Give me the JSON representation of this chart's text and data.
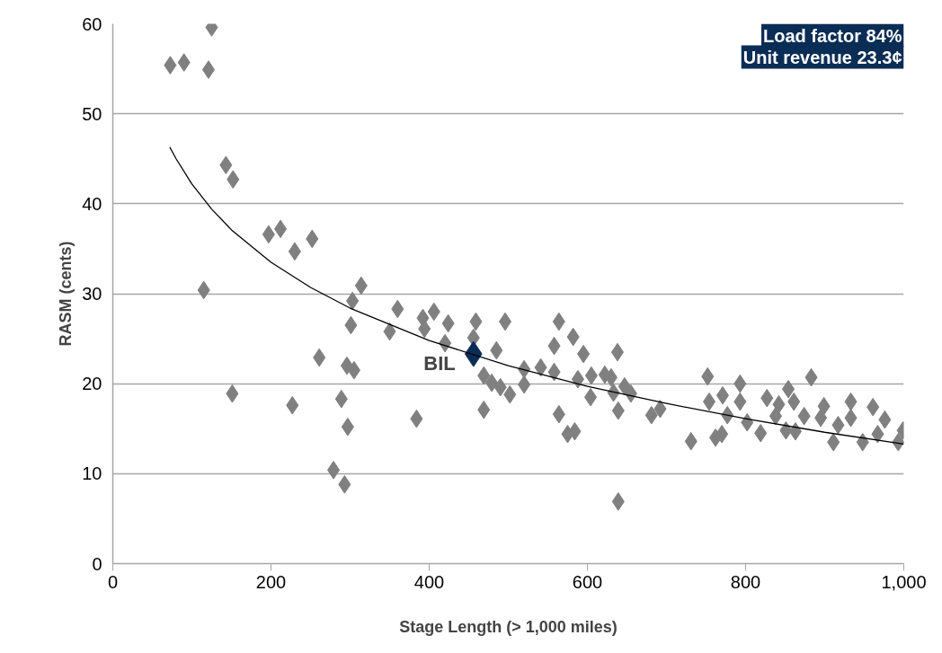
{
  "chart_data": {
    "type": "scatter",
    "xlabel": "Stage Length (> 1,000 miles)",
    "ylabel": "RASM (cents)",
    "xlim": [
      0,
      1000
    ],
    "ylim": [
      0,
      60
    ],
    "xticks": [
      0,
      200,
      400,
      600,
      800,
      {
        "value": 1000,
        "label": "1,000"
      }
    ],
    "yticks": [
      0,
      10,
      20,
      30,
      40,
      50,
      60
    ],
    "grid": "y",
    "marker": "diamond",
    "annotations": [
      "Load factor 84%",
      "Unit revenue 23.3¢"
    ],
    "series": [
      {
        "color": "#808080",
        "x": [
          125,
          72.6,
          90,
          121,
          143,
          152,
          197,
          212,
          230,
          252,
          115,
          314,
          303,
          301,
          261,
          296,
          305,
          151,
          227,
          289,
          297,
          279,
          293,
          360,
          350,
          392,
          406,
          394,
          424,
          420,
          459,
          496,
          456,
          485,
          469,
          479,
          490,
          502,
          469,
          384,
          520,
          520,
          541,
          558,
          564,
          558,
          582,
          595,
          588,
          604,
          605,
          622,
          630,
          638,
          639,
          633,
          647,
          564,
          575,
          584,
          639,
          655,
          681,
          692,
          731,
          752,
          754,
          771,
          777,
          762,
          770,
          793,
          793,
          802,
          819,
          827,
          838,
          842,
          854,
          861,
          851,
          863,
          883,
          874,
          899,
          895,
          911,
          917,
          933,
          933,
          948,
          961,
          967,
          976,
          993,
          999
        ],
        "values": [
          59.6,
          55.4,
          55.7,
          54.9,
          44.3,
          42.7,
          36.6,
          37.2,
          34.7,
          36.1,
          30.4,
          30.9,
          29.2,
          26.5,
          22.9,
          22,
          21.5,
          18.9,
          17.6,
          18.3,
          15.2,
          10.4,
          8.8,
          28.3,
          25.8,
          27.3,
          28,
          26.1,
          26.7,
          24.5,
          26.9,
          26.9,
          25.1,
          23.7,
          20.9,
          20.1,
          19.6,
          18.8,
          17.1,
          16.1,
          21.6,
          19.9,
          21.8,
          21.3,
          26.9,
          24.2,
          25.2,
          23.3,
          20.5,
          18.5,
          20.9,
          21,
          20.7,
          23.5,
          17,
          19,
          19.7,
          16.6,
          14.4,
          14.7,
          6.9,
          18.9,
          16.5,
          17.2,
          13.6,
          20.8,
          18,
          18.7,
          16.5,
          14,
          14.4,
          20,
          18,
          15.7,
          14.5,
          18.4,
          16.4,
          17.7,
          19.4,
          18,
          14.8,
          14.7,
          20.7,
          16.4,
          17.5,
          16.2,
          13.5,
          15.4,
          18,
          16.2,
          13.5,
          17.4,
          14.4,
          16,
          13.5,
          14.8
        ]
      },
      {
        "name": "BIL",
        "color": "#0a2d55",
        "x": [
          456
        ],
        "values": [
          23.3
        ]
      },
      {
        "type": "line",
        "marker": "none",
        "color": "#000000",
        "x": [
          72,
          80,
          100,
          125,
          150,
          200,
          250,
          300,
          400,
          500,
          600,
          700,
          800,
          900,
          1000
        ],
        "values": [
          46.3,
          45.0,
          42.2,
          39.4,
          37.1,
          33.5,
          30.7,
          28.4,
          24.8,
          22.0,
          19.7,
          17.8,
          16.1,
          14.6,
          13.3
        ]
      }
    ]
  }
}
